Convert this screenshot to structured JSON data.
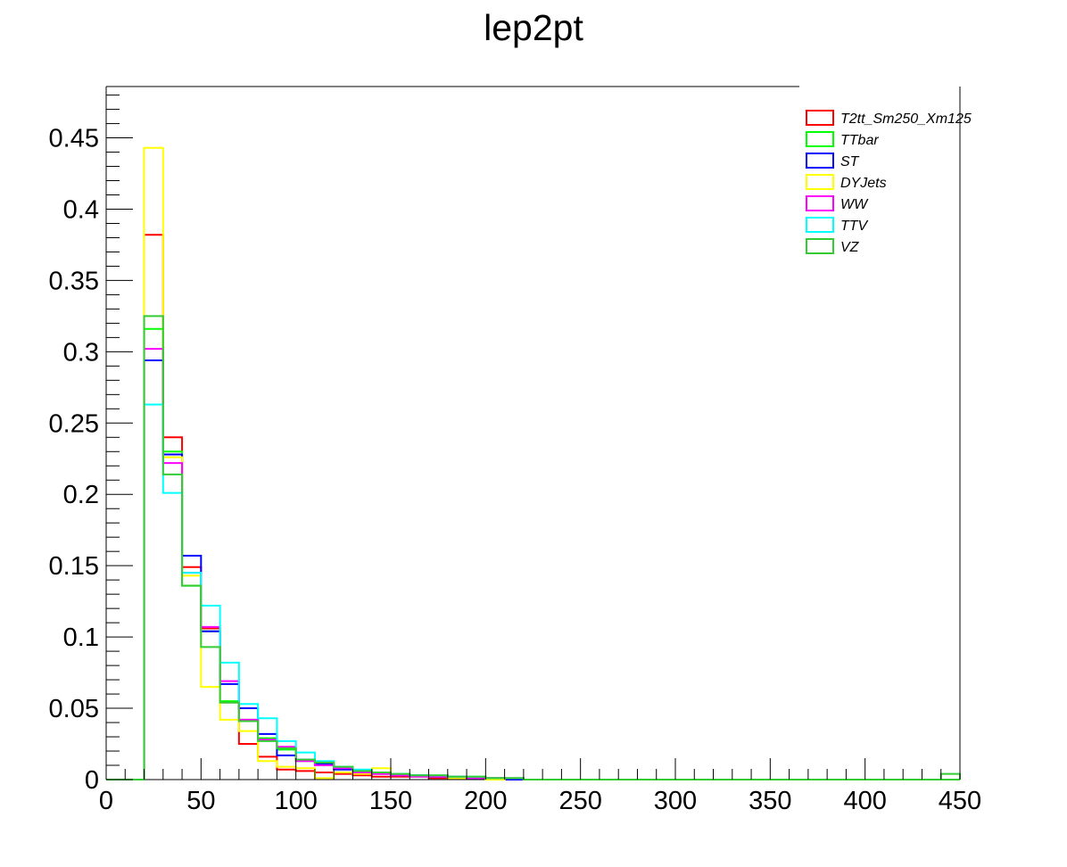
{
  "chart_data": {
    "type": "histogram",
    "title": "lep2pt",
    "xlabel": "",
    "ylabel": "",
    "xlim": [
      0,
      450
    ],
    "ylim": [
      0,
      0.486
    ],
    "bin_width": 10,
    "bin_start": 20,
    "x_ticks": [
      0,
      50,
      100,
      150,
      200,
      250,
      300,
      350,
      400,
      450
    ],
    "x_tick_labels": [
      "0",
      "50",
      "100",
      "150",
      "200",
      "250",
      "300",
      "350",
      "400",
      "450"
    ],
    "y_ticks": [
      0,
      0.05,
      0.1,
      0.15,
      0.2,
      0.25,
      0.3,
      0.35,
      0.4,
      0.45
    ],
    "y_tick_labels": [
      "0",
      "0.05",
      "0.1",
      "0.15",
      "0.2",
      "0.25",
      "0.3",
      "0.35",
      "0.4",
      "0.45"
    ],
    "legend_position": "top-right",
    "series": [
      {
        "name": "T2tt_Sm250_Xm125",
        "color": "#ff0000",
        "values": [
          0.382,
          0.24,
          0.149,
          0.106,
          0.054,
          0.025,
          0.016,
          0.007,
          0.006,
          0.005,
          0.004,
          0.003,
          0.002,
          0.002,
          0.002,
          0.001,
          0.001,
          0.001,
          0.001,
          0.0
        ]
      },
      {
        "name": "TTbar",
        "color": "#00ff00",
        "values": [
          0.316,
          0.23,
          0.136,
          0.104,
          0.055,
          0.042,
          0.029,
          0.021,
          0.013,
          0.01,
          0.008,
          0.006,
          0.005,
          0.004,
          0.003,
          0.002,
          0.002,
          0.002,
          0.001,
          0.001
        ]
      },
      {
        "name": "ST",
        "color": "#0000ff",
        "values": [
          0.294,
          0.228,
          0.157,
          0.104,
          0.067,
          0.05,
          0.032,
          0.017,
          0.014,
          0.011,
          0.007,
          0.005,
          0.004,
          0.003,
          0.003,
          0.002,
          0.002,
          0.001,
          0.001,
          0.0
        ]
      },
      {
        "name": "DYJets",
        "color": "#ffff00",
        "values": [
          0.443,
          0.226,
          0.143,
          0.065,
          0.042,
          0.034,
          0.013,
          0.009,
          0.008,
          0.001,
          0.005,
          0.004,
          0.008,
          0.004,
          0.002,
          0.003,
          0.001,
          0.002,
          0.0,
          0.001
        ]
      },
      {
        "name": "WW",
        "color": "#ff00ff",
        "values": [
          0.302,
          0.222,
          0.145,
          0.107,
          0.069,
          0.042,
          0.028,
          0.023,
          0.013,
          0.01,
          0.008,
          0.005,
          0.004,
          0.003,
          0.002,
          0.002,
          0.002,
          0.001,
          0.001,
          0.001
        ]
      },
      {
        "name": "TTV",
        "color": "#00ffff",
        "values": [
          0.263,
          0.201,
          0.145,
          0.122,
          0.082,
          0.053,
          0.043,
          0.027,
          0.019,
          0.013,
          0.009,
          0.007,
          0.005,
          0.004,
          0.003,
          0.003,
          0.002,
          0.002,
          0.001,
          0.001
        ]
      },
      {
        "name": "VZ",
        "color": "#33cc33",
        "values": [
          0.325,
          0.214,
          0.136,
          0.093,
          0.054,
          0.041,
          0.027,
          0.022,
          0.014,
          0.012,
          0.009,
          0.006,
          0.005,
          0.004,
          0.003,
          0.003,
          0.002,
          0.002,
          0.001,
          0.001
        ]
      }
    ],
    "last_bin_note": ""
  }
}
